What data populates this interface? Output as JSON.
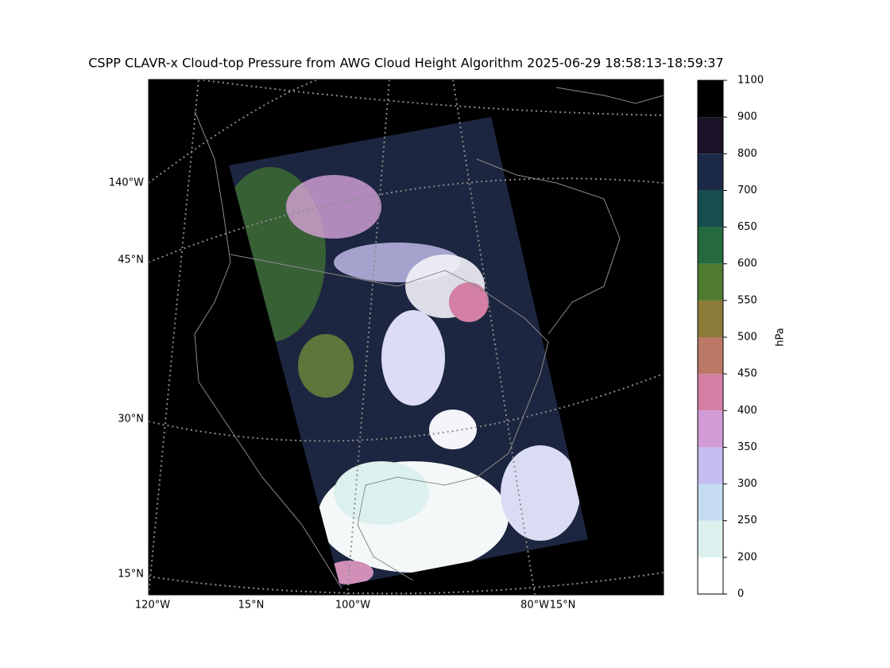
{
  "title": "CSPP CLAVR-x Cloud-top Pressure from AWG Cloud Height Algorithm 2025-06-29 18:58:13-18:59:37",
  "map": {
    "grid_labels": [
      "140°W",
      "45°N",
      "30°N",
      "15°N",
      "120°W",
      "15°N",
      "100°W",
      "80°W",
      "15°N"
    ]
  },
  "colorbar": {
    "label": "hPa",
    "ticks": [
      0,
      200,
      250,
      300,
      350,
      400,
      450,
      500,
      550,
      600,
      650,
      700,
      800,
      900,
      1100
    ],
    "colors": [
      "#ffffff",
      "#dcf1ed",
      "#c5dcf0",
      "#c4bdf0",
      "#d29bd8",
      "#d47fa4",
      "#bb7866",
      "#8a7b38",
      "#4f7a30",
      "#256a3e",
      "#164d4d",
      "#1c2a48",
      "#1c1228",
      "#000000"
    ]
  }
}
